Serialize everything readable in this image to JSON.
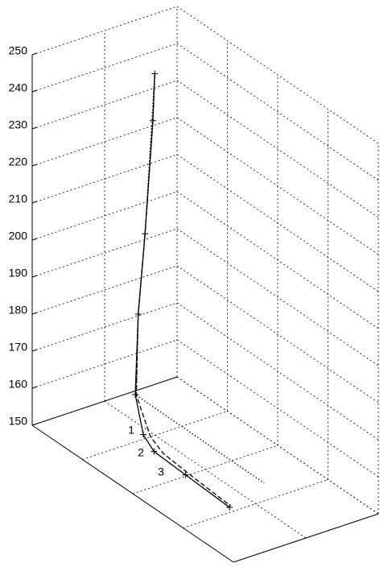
{
  "chart_data": {
    "type": "line3d",
    "zlim": [
      150,
      250
    ],
    "zticks": [
      150,
      160,
      170,
      180,
      190,
      200,
      210,
      220,
      230,
      240,
      250
    ],
    "xlim": [
      0,
      1
    ],
    "ylim": [
      0,
      1
    ],
    "grid": true,
    "annotations": [
      "1",
      "2",
      "3"
    ],
    "series": [
      {
        "color": "#000000",
        "style": "solid",
        "marker": "+",
        "x": [
          0.184,
          0.193,
          0.172,
          0.174,
          0.145,
          0.264,
          0.346,
          0.503,
          0.725
        ],
        "y": [
          0.59,
          0.565,
          0.54,
          0.49,
          0.51,
          0.4,
          0.36,
          0.36,
          0.355
        ],
        "z": [
          244,
          232,
          201,
          180,
          157,
          152,
          151,
          150.5,
          150
        ]
      },
      {
        "color": "#000000",
        "style": "dashed",
        "x": [
          0.184,
          0.193,
          0.172,
          0.174,
          0.15,
          0.285,
          0.37,
          0.52,
          0.72
        ],
        "y": [
          0.59,
          0.565,
          0.54,
          0.49,
          0.51,
          0.42,
          0.39,
          0.38,
          0.37
        ],
        "z": [
          244,
          232,
          201,
          180,
          157,
          152,
          151,
          150.5,
          150
        ]
      },
      {
        "color": "#000000",
        "style": "dotted",
        "x": [
          0.184,
          0.172,
          0.174,
          0.15,
          0.663
        ],
        "y": [
          0.59,
          0.54,
          0.49,
          0.51,
          0.68
        ],
        "z": [
          244,
          201,
          180,
          157,
          150
        ]
      }
    ]
  }
}
